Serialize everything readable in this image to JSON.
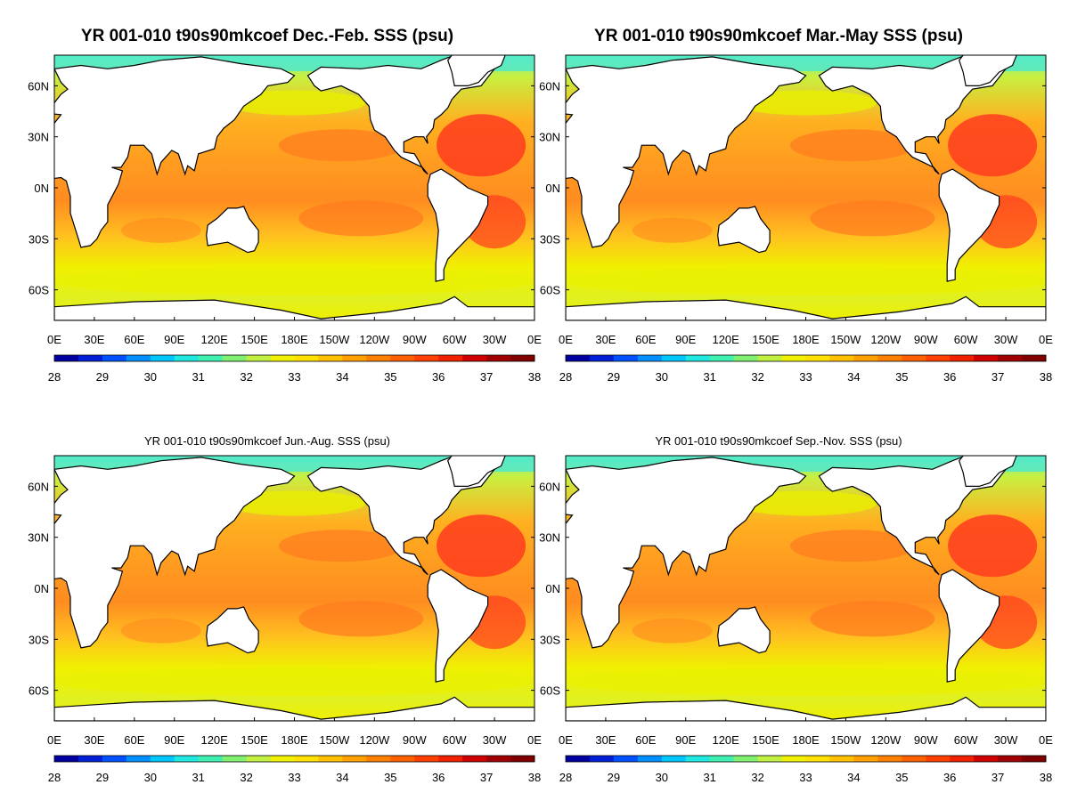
{
  "panels": [
    {
      "id": "djf",
      "title": "YR 001-010 t90s90mkcoef Dec.-Feb. SSS (psu)",
      "size": "big"
    },
    {
      "id": "mam",
      "title": "YR 001-010 t90s90mkcoef Mar.-May SSS (psu)",
      "size": "big"
    },
    {
      "id": "jja",
      "title": "YR 001-010 t90s90mkcoef Jun.-Aug. SSS (psu)",
      "size": "small"
    },
    {
      "id": "son",
      "title": "YR 001-010 t90s90mkcoef Sep.-Nov. SSS (psu)",
      "size": "small"
    }
  ],
  "axes": {
    "lon_ticks": [
      "0E",
      "30E",
      "60E",
      "90E",
      "120E",
      "150E",
      "180E",
      "150W",
      "120W",
      "90W",
      "60W",
      "30W",
      "0E"
    ],
    "lat_ticks": [
      "60N",
      "30N",
      "0N",
      "30S",
      "60S"
    ]
  },
  "colorbar": {
    "labels": [
      "28",
      "29",
      "30",
      "31",
      "32",
      "33",
      "34",
      "35",
      "36",
      "37",
      "38"
    ],
    "colors": [
      "#0000a0",
      "#0020d8",
      "#0050ff",
      "#0090ff",
      "#00c8ff",
      "#20e8e0",
      "#40f0b0",
      "#80f070",
      "#c0f040",
      "#f0f000",
      "#ffe000",
      "#ffc000",
      "#ffa000",
      "#ff8000",
      "#ff6000",
      "#ff4000",
      "#f02000",
      "#d00000",
      "#a00000",
      "#800000"
    ]
  },
  "legend_colors": {
    "land": "#ffffff",
    "high_salinity": "#ff3c1e",
    "mid_salinity": "#ff8c1e",
    "low_salinity": "#e8f000",
    "fresh": "#4ee8d0"
  }
}
